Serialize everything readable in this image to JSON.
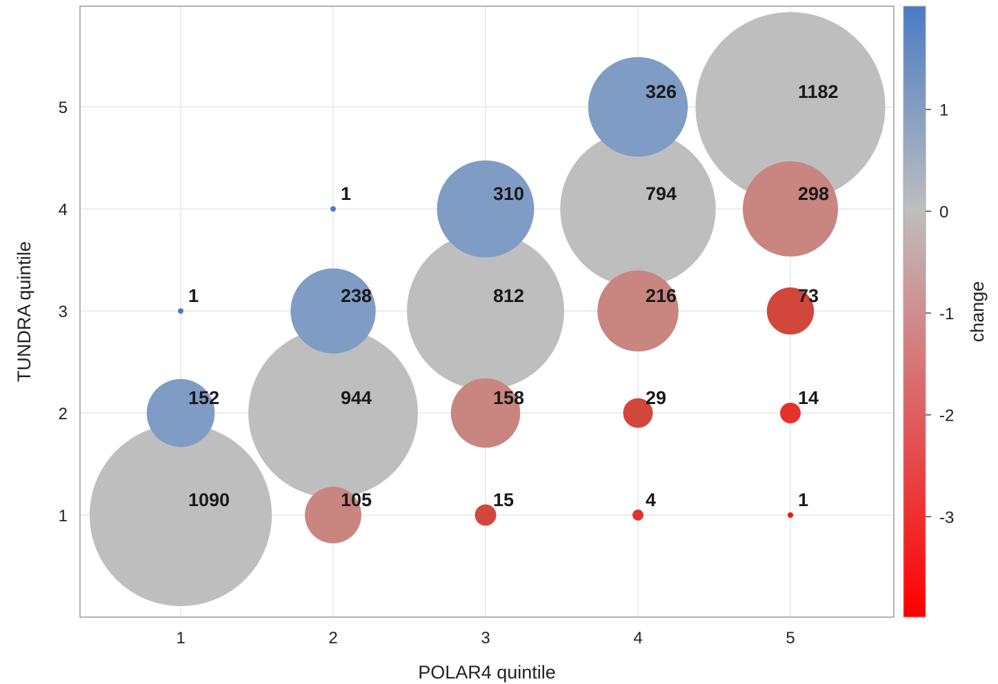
{
  "chart_data": {
    "type": "scatter",
    "subtype": "bubble",
    "xlabel": "POLAR4 quintile",
    "ylabel": "TUNDRA quintile",
    "x_ticks": [
      "1",
      "2",
      "3",
      "4",
      "5"
    ],
    "y_ticks": [
      "1",
      "2",
      "3",
      "4",
      "5"
    ],
    "xlim": [
      0.33,
      5.68
    ],
    "ylim": [
      0,
      6
    ],
    "grid": true,
    "points": [
      {
        "x": 1,
        "y": 1,
        "count": 1090,
        "change": 0,
        "label": "1090"
      },
      {
        "x": 1,
        "y": 2,
        "count": 152,
        "change": 1,
        "label": "152"
      },
      {
        "x": 1,
        "y": 3,
        "count": 1,
        "change": 2,
        "label": "1"
      },
      {
        "x": 2,
        "y": 1,
        "count": 105,
        "change": -1,
        "label": "105"
      },
      {
        "x": 2,
        "y": 2,
        "count": 944,
        "change": 0,
        "label": "944"
      },
      {
        "x": 2,
        "y": 3,
        "count": 238,
        "change": 1,
        "label": "238"
      },
      {
        "x": 2,
        "y": 4,
        "count": 1,
        "change": 2,
        "label": "1"
      },
      {
        "x": 3,
        "y": 1,
        "count": 15,
        "change": -2,
        "label": "15"
      },
      {
        "x": 3,
        "y": 2,
        "count": 158,
        "change": -1,
        "label": "158"
      },
      {
        "x": 3,
        "y": 3,
        "count": 812,
        "change": 0,
        "label": "812"
      },
      {
        "x": 3,
        "y": 4,
        "count": 310,
        "change": 1,
        "label": "310"
      },
      {
        "x": 4,
        "y": 1,
        "count": 4,
        "change": -3,
        "label": "4"
      },
      {
        "x": 4,
        "y": 2,
        "count": 29,
        "change": -2,
        "label": "29"
      },
      {
        "x": 4,
        "y": 3,
        "count": 216,
        "change": -1,
        "label": "216"
      },
      {
        "x": 4,
        "y": 4,
        "count": 794,
        "change": 0,
        "label": "794"
      },
      {
        "x": 4,
        "y": 5,
        "count": 326,
        "change": 1,
        "label": "326"
      },
      {
        "x": 5,
        "y": 1,
        "count": 1,
        "change": -4,
        "label": "1"
      },
      {
        "x": 5,
        "y": 2,
        "count": 14,
        "change": -3,
        "label": "14"
      },
      {
        "x": 5,
        "y": 3,
        "count": 73,
        "change": -2,
        "label": "73"
      },
      {
        "x": 5,
        "y": 4,
        "count": 298,
        "change": -1,
        "label": "298"
      },
      {
        "x": 5,
        "y": 5,
        "count": 1182,
        "change": 0,
        "label": "1182"
      }
    ],
    "colorbar": {
      "label": "change",
      "range": [
        -4,
        2
      ],
      "ticks": [
        1,
        0,
        -1,
        -2,
        -3
      ],
      "tick_labels": [
        "1",
        "0",
        "-1",
        "-2",
        "-3"
      ],
      "colors": {
        "positive": "#4a7bc4",
        "zero": "#bebebe",
        "negative": "#ff0000"
      }
    },
    "point_colors": {
      "1": "#7f9cc4",
      "2": "#4a7bc4",
      "0": "#bebebe",
      "-1": "#c98580",
      "-2": "#d2463c",
      "-3": "#e8302a",
      "-4": "#ff1010"
    }
  }
}
